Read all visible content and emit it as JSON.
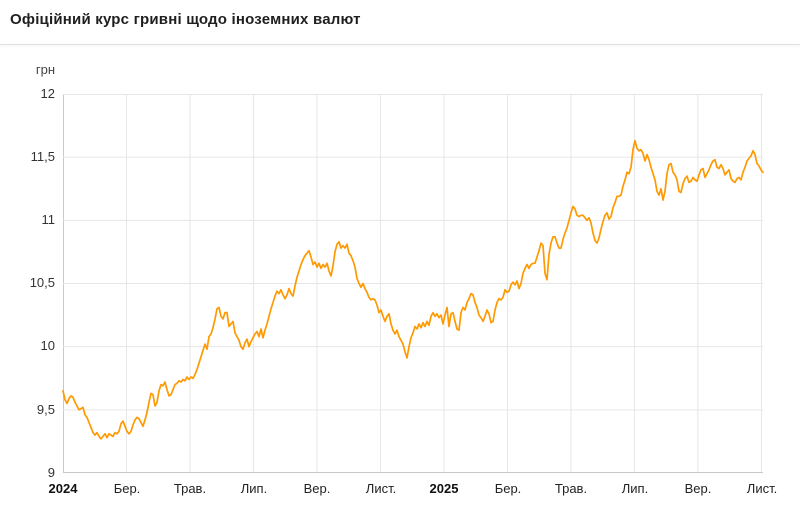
{
  "header": {
    "title": "Офіційний курс гривні щодо іноземних валют"
  },
  "chart_data": {
    "type": "line",
    "title": "Офіційний курс гривні щодо іноземних валют",
    "xlabel": "",
    "ylabel": "грн",
    "grid": true,
    "legend": "none",
    "line_color": "#ff9900",
    "grid_color": "#e6e6e6",
    "axis_color": "#c9c9c9",
    "ylim": [
      9,
      12
    ],
    "y_ticks": [
      "12",
      "11,5",
      "11",
      "10,5",
      "10",
      "9,5",
      "9"
    ],
    "y_tick_values": [
      12,
      11.5,
      11,
      10.5,
      10,
      9.5,
      9
    ],
    "x_ticks": [
      "2024",
      "Бер.",
      "Трав.",
      "Лип.",
      "Вер.",
      "Лист.",
      "2025",
      "Бер.",
      "Трав.",
      "Лип.",
      "Вер.",
      "Лист."
    ],
    "x_tick_months": [
      0,
      2,
      4,
      6,
      8,
      10,
      12,
      14,
      16,
      18,
      20,
      22
    ],
    "x_range_months": [
      0,
      22.05
    ],
    "series": [
      {
        "name": "",
        "color": "#ff9900",
        "start_month": 0,
        "end_month": 22.05,
        "values": [
          9.65,
          9.58,
          9.55,
          9.59,
          9.61,
          9.6,
          9.56,
          9.53,
          9.5,
          9.51,
          9.52,
          9.46,
          9.44,
          9.4,
          9.36,
          9.32,
          9.3,
          9.32,
          9.29,
          9.27,
          9.29,
          9.31,
          9.28,
          9.31,
          9.3,
          9.29,
          9.32,
          9.31,
          9.33,
          9.39,
          9.41,
          9.37,
          9.33,
          9.31,
          9.33,
          9.38,
          9.42,
          9.44,
          9.43,
          9.4,
          9.37,
          9.42,
          9.48,
          9.56,
          9.63,
          9.62,
          9.53,
          9.56,
          9.65,
          9.7,
          9.69,
          9.72,
          9.66,
          9.61,
          9.62,
          9.66,
          9.7,
          9.71,
          9.73,
          9.72,
          9.74,
          9.73,
          9.76,
          9.74,
          9.76,
          9.75,
          9.78,
          9.82,
          9.87,
          9.92,
          9.97,
          10.02,
          9.98,
          10.08,
          10.1,
          10.15,
          10.22,
          10.3,
          10.31,
          10.24,
          10.22,
          10.27,
          10.27,
          10.16,
          10.18,
          10.2,
          10.11,
          10.08,
          10.05,
          10.0,
          9.98,
          10.03,
          10.06,
          10.0,
          10.04,
          10.07,
          10.1,
          10.12,
          10.08,
          10.14,
          10.07,
          10.13,
          10.18,
          10.24,
          10.3,
          10.35,
          10.4,
          10.44,
          10.42,
          10.45,
          10.41,
          10.38,
          10.41,
          10.46,
          10.42,
          10.4,
          10.48,
          10.55,
          10.6,
          10.65,
          10.69,
          10.72,
          10.74,
          10.76,
          10.71,
          10.65,
          10.67,
          10.63,
          10.66,
          10.62,
          10.65,
          10.63,
          10.66,
          10.6,
          10.56,
          10.64,
          10.75,
          10.81,
          10.83,
          10.78,
          10.8,
          10.78,
          10.81,
          10.74,
          10.72,
          10.68,
          10.63,
          10.54,
          10.5,
          10.47,
          10.5,
          10.46,
          10.43,
          10.39,
          10.37,
          10.38,
          10.37,
          10.33,
          10.27,
          10.29,
          10.24,
          10.2,
          10.24,
          10.26,
          10.18,
          10.13,
          10.1,
          10.13,
          10.08,
          10.05,
          10.02,
          9.96,
          9.91,
          10.0,
          10.07,
          10.11,
          10.16,
          10.14,
          10.18,
          10.15,
          10.19,
          10.16,
          10.2,
          10.17,
          10.24,
          10.27,
          10.24,
          10.26,
          10.23,
          10.25,
          10.18,
          10.25,
          10.31,
          10.16,
          10.26,
          10.27,
          10.2,
          10.14,
          10.13,
          10.27,
          10.31,
          10.29,
          10.35,
          10.38,
          10.42,
          10.41,
          10.35,
          10.31,
          10.25,
          10.23,
          10.2,
          10.24,
          10.29,
          10.26,
          10.19,
          10.2,
          10.29,
          10.35,
          10.38,
          10.37,
          10.39,
          10.45,
          10.43,
          10.44,
          10.49,
          10.51,
          10.49,
          10.52,
          10.46,
          10.5,
          10.58,
          10.62,
          10.65,
          10.62,
          10.65,
          10.66,
          10.66,
          10.71,
          10.76,
          10.82,
          10.8,
          10.58,
          10.53,
          10.73,
          10.82,
          10.87,
          10.87,
          10.82,
          10.78,
          10.78,
          10.85,
          10.9,
          10.94,
          11.0,
          11.06,
          11.11,
          11.09,
          11.04,
          11.03,
          11.04,
          11.04,
          11.02,
          11.0,
          11.02,
          10.98,
          10.9,
          10.84,
          10.82,
          10.86,
          10.93,
          10.99,
          11.04,
          11.06,
          11.01,
          11.03,
          11.1,
          11.14,
          11.19,
          11.19,
          11.2,
          11.27,
          11.32,
          11.38,
          11.37,
          11.42,
          11.56,
          11.63,
          11.57,
          11.55,
          11.56,
          11.53,
          11.47,
          11.52,
          11.48,
          11.42,
          11.37,
          11.32,
          11.23,
          11.2,
          11.25,
          11.16,
          11.23,
          11.37,
          11.44,
          11.45,
          11.38,
          11.36,
          11.32,
          11.23,
          11.22,
          11.29,
          11.33,
          11.35,
          11.3,
          11.31,
          11.34,
          11.32,
          11.31,
          11.36,
          11.4,
          11.41,
          11.34,
          11.37,
          11.4,
          11.44,
          11.47,
          11.48,
          11.42,
          11.41,
          11.44,
          11.41,
          11.36,
          11.38,
          11.4,
          11.33,
          11.31,
          11.3,
          11.33,
          11.34,
          11.32,
          11.38,
          11.42,
          11.47,
          11.49,
          11.51,
          11.55,
          11.52,
          11.45,
          11.43,
          11.4,
          11.38
        ]
      }
    ]
  }
}
